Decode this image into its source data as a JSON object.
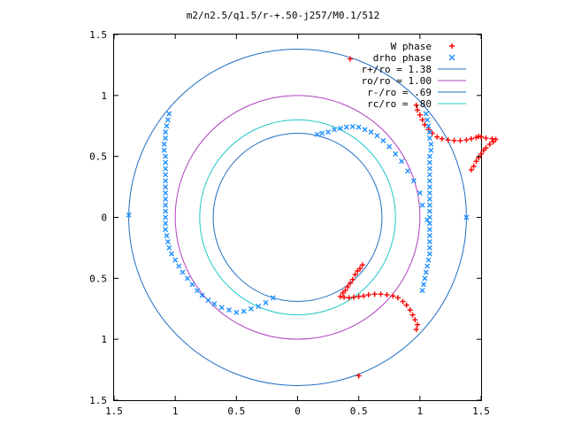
{
  "chart_data": {
    "type": "scatter",
    "title": "m2/n2.5/q1.5/r-+.50-j257/M0.1/512",
    "xlabel": "",
    "ylabel": "",
    "xlim": [
      -1.5,
      1.5
    ],
    "ylim": [
      -1.5,
      1.5
    ],
    "x_tick_labels": [
      "1.5",
      "1",
      "0.5",
      "0",
      "0.5",
      "1",
      "1.5"
    ],
    "y_tick_labels": [
      "1.5",
      "1",
      "0.5",
      "0",
      "0.5",
      "1",
      "1.5"
    ],
    "grid": false,
    "legend_position": "top-right",
    "colors": {
      "w_phase": "#ff0000",
      "drho_phase": "#1e90ff",
      "r_plus": "#1e6fc2",
      "r_o": "#b040c0",
      "r_minus": "#1e6fc2",
      "r_c": "#20c8c8"
    },
    "circles": [
      {
        "label": "r+/ro = 1.38",
        "radius": 1.38
      },
      {
        "label": "ro/ro = 1.00",
        "radius": 1.0
      },
      {
        "label": "r-/ro = .69",
        "radius": 0.69
      },
      {
        "label": "rc/ro = .80",
        "radius": 0.8
      }
    ],
    "series": [
      {
        "name": "W phase",
        "marker": "plus",
        "points": [
          [
            0.97,
            0.92
          ],
          [
            0.98,
            0.88
          ],
          [
            1.0,
            0.84
          ],
          [
            1.02,
            0.8
          ],
          [
            1.04,
            0.76
          ],
          [
            1.07,
            0.72
          ],
          [
            1.1,
            0.69
          ],
          [
            1.14,
            0.66
          ],
          [
            1.18,
            0.645
          ],
          [
            1.23,
            0.635
          ],
          [
            1.28,
            0.63
          ],
          [
            1.33,
            0.63
          ],
          [
            1.38,
            0.635
          ],
          [
            1.42,
            0.645
          ],
          [
            1.46,
            0.655
          ],
          [
            1.48,
            0.665
          ],
          [
            1.5,
            0.66
          ],
          [
            1.54,
            0.65
          ],
          [
            1.59,
            0.645
          ],
          [
            1.62,
            0.64
          ],
          [
            1.6,
            0.62
          ],
          [
            1.57,
            0.6
          ],
          [
            1.54,
            0.57
          ],
          [
            1.52,
            0.55
          ],
          [
            1.5,
            0.52
          ],
          [
            1.48,
            0.49
          ],
          [
            1.46,
            0.46
          ],
          [
            1.44,
            0.42
          ],
          [
            1.42,
            0.39
          ],
          [
            0.43,
            1.3
          ],
          [
            0.5,
            -1.3
          ],
          [
            0.97,
            -0.92
          ],
          [
            0.98,
            -0.88
          ],
          [
            0.96,
            -0.84
          ],
          [
            0.94,
            -0.8
          ],
          [
            0.92,
            -0.76
          ],
          [
            0.89,
            -0.72
          ],
          [
            0.86,
            -0.69
          ],
          [
            0.82,
            -0.66
          ],
          [
            0.78,
            -0.645
          ],
          [
            0.73,
            -0.635
          ],
          [
            0.68,
            -0.63
          ],
          [
            0.63,
            -0.63
          ],
          [
            0.58,
            -0.635
          ],
          [
            0.54,
            -0.645
          ],
          [
            0.5,
            -0.65
          ],
          [
            0.46,
            -0.655
          ],
          [
            0.42,
            -0.66
          ],
          [
            0.38,
            -0.655
          ],
          [
            0.35,
            -0.65
          ],
          [
            0.37,
            -0.62
          ],
          [
            0.39,
            -0.6
          ],
          [
            0.41,
            -0.57
          ],
          [
            0.43,
            -0.54
          ],
          [
            0.45,
            -0.51
          ],
          [
            0.47,
            -0.47
          ],
          [
            0.49,
            -0.44
          ],
          [
            0.51,
            -0.42
          ],
          [
            0.53,
            -0.39
          ]
        ]
      },
      {
        "name": "drho phase",
        "marker": "cross",
        "points": [
          [
            1.05,
            0.85
          ],
          [
            1.06,
            0.8
          ],
          [
            1.07,
            0.75
          ],
          [
            1.08,
            0.7
          ],
          [
            1.08,
            0.65
          ],
          [
            1.09,
            0.6
          ],
          [
            1.09,
            0.55
          ],
          [
            1.08,
            0.5
          ],
          [
            1.08,
            0.45
          ],
          [
            1.08,
            0.4
          ],
          [
            1.08,
            0.35
          ],
          [
            1.08,
            0.3
          ],
          [
            1.08,
            0.25
          ],
          [
            1.08,
            0.2
          ],
          [
            1.08,
            0.15
          ],
          [
            1.08,
            0.1
          ],
          [
            1.08,
            0.05
          ],
          [
            1.08,
            0.0
          ],
          [
            1.08,
            -0.05
          ],
          [
            1.08,
            -0.1
          ],
          [
            1.08,
            -0.15
          ],
          [
            1.08,
            -0.2
          ],
          [
            1.08,
            -0.25
          ],
          [
            1.08,
            -0.3
          ],
          [
            1.07,
            -0.35
          ],
          [
            1.06,
            -0.4
          ],
          [
            1.05,
            -0.45
          ],
          [
            1.04,
            -0.5
          ],
          [
            1.03,
            -0.55
          ],
          [
            1.02,
            -0.6
          ],
          [
            0.16,
            0.68
          ],
          [
            0.2,
            0.69
          ],
          [
            0.25,
            0.7
          ],
          [
            0.3,
            0.72
          ],
          [
            0.35,
            0.73
          ],
          [
            0.4,
            0.74
          ],
          [
            0.45,
            0.745
          ],
          [
            0.5,
            0.74
          ],
          [
            0.55,
            0.72
          ],
          [
            0.6,
            0.7
          ],
          [
            0.65,
            0.67
          ],
          [
            0.7,
            0.63
          ],
          [
            0.75,
            0.58
          ],
          [
            0.8,
            0.52
          ],
          [
            0.85,
            0.46
          ],
          [
            0.9,
            0.38
          ],
          [
            0.95,
            0.3
          ],
          [
            1.0,
            0.2
          ],
          [
            1.02,
            0.1
          ],
          [
            1.06,
            -0.02
          ],
          [
            -1.05,
            0.85
          ],
          [
            -1.06,
            0.8
          ],
          [
            -1.07,
            0.75
          ],
          [
            -1.08,
            0.7
          ],
          [
            -1.08,
            0.65
          ],
          [
            -1.09,
            0.6
          ],
          [
            -1.09,
            0.55
          ],
          [
            -1.08,
            0.5
          ],
          [
            -1.08,
            0.45
          ],
          [
            -1.08,
            0.4
          ],
          [
            -1.08,
            0.35
          ],
          [
            -1.08,
            0.3
          ],
          [
            -1.08,
            0.25
          ],
          [
            -1.08,
            0.2
          ],
          [
            -1.08,
            0.15
          ],
          [
            -1.08,
            0.1
          ],
          [
            -1.08,
            0.05
          ],
          [
            -1.08,
            0.0
          ],
          [
            -1.08,
            -0.05
          ],
          [
            -1.08,
            -0.1
          ],
          [
            -1.07,
            -0.15
          ],
          [
            -1.06,
            -0.2
          ],
          [
            -1.05,
            -0.25
          ],
          [
            -1.03,
            -0.3
          ],
          [
            -1.0,
            -0.35
          ],
          [
            -0.97,
            -0.4
          ],
          [
            -0.94,
            -0.45
          ],
          [
            -0.9,
            -0.5
          ],
          [
            -0.86,
            -0.55
          ],
          [
            -0.82,
            -0.6
          ],
          [
            -0.78,
            -0.64
          ],
          [
            -0.73,
            -0.68
          ],
          [
            -0.68,
            -0.71
          ],
          [
            -0.62,
            -0.74
          ],
          [
            -0.56,
            -0.76
          ],
          [
            -0.5,
            -0.78
          ],
          [
            -0.44,
            -0.77
          ],
          [
            -0.38,
            -0.75
          ],
          [
            -0.32,
            -0.73
          ],
          [
            -0.26,
            -0.7
          ],
          [
            -0.2,
            -0.66
          ],
          [
            -1.38,
            0.02
          ],
          [
            1.38,
            0.0
          ]
        ]
      }
    ]
  }
}
